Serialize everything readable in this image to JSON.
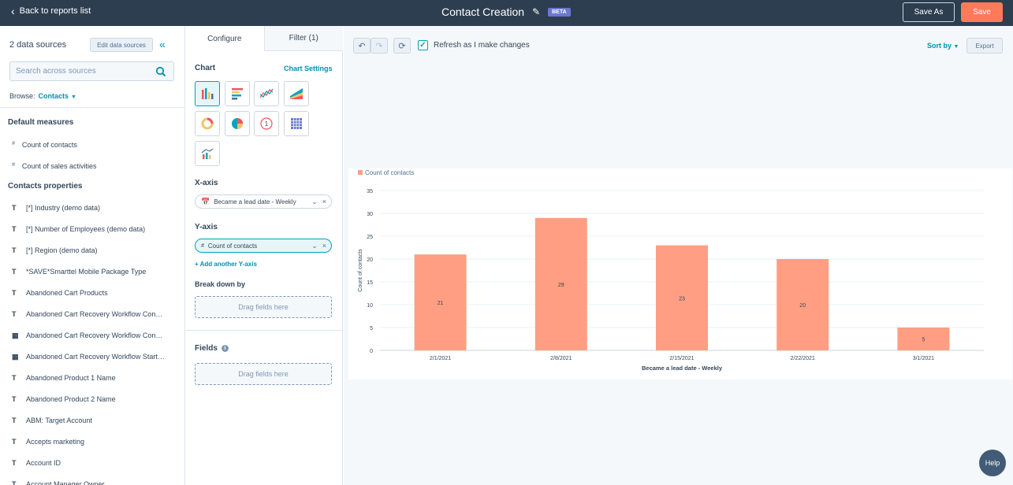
{
  "topbar": {
    "back_label": "Back to reports list",
    "title": "Contact Creation",
    "badge": "BETA",
    "save_as_label": "Save As",
    "save_label": "Save"
  },
  "sources": {
    "title": "2 data sources",
    "edit_label": "Edit data sources",
    "search_placeholder": "Search across sources",
    "browse_label": "Browse:",
    "browse_value": "Contacts"
  },
  "default_measures": {
    "title": "Default measures",
    "items": [
      {
        "type": "#",
        "label": "Count of contacts"
      },
      {
        "type": "#",
        "label": "Count of sales activities"
      }
    ]
  },
  "contact_properties": {
    "title": "Contacts properties",
    "items": [
      {
        "type": "T",
        "label": "[*] Industry (demo data)"
      },
      {
        "type": "T",
        "label": "[*] Number of Employees (demo data)"
      },
      {
        "type": "T",
        "label": "[*] Region (demo data)"
      },
      {
        "type": "T",
        "label": "*SAVE*Smarttel Mobile Package Type"
      },
      {
        "type": "T",
        "label": "Abandoned Cart Products"
      },
      {
        "type": "T",
        "label": "Abandoned Cart Recovery Workflow Con…"
      },
      {
        "type": "cal",
        "label": "Abandoned Cart Recovery Workflow Con…"
      },
      {
        "type": "cal",
        "label": "Abandoned Cart Recovery Workflow Start…"
      },
      {
        "type": "T",
        "label": "Abandoned Product 1 Name"
      },
      {
        "type": "T",
        "label": "Abandoned Product 2 Name"
      },
      {
        "type": "T",
        "label": "ABM: Target Account"
      },
      {
        "type": "T",
        "label": "Accepts marketing"
      },
      {
        "type": "T",
        "label": "Account ID"
      },
      {
        "type": "T",
        "label": "Account Manager Owner"
      }
    ]
  },
  "config": {
    "tab_configure": "Configure",
    "tab_filter": "Filter (1)",
    "chart_label": "Chart",
    "chart_settings": "Chart Settings",
    "xaxis_label": "X-axis",
    "xaxis_value": "Became a lead date - Weekly",
    "yaxis_label": "Y-axis",
    "yaxis_value": "Count of contacts",
    "add_y": "+ Add another Y-axis",
    "breakdown_label": "Break down by",
    "drag_fields": "Drag fields here",
    "fields_label": "Fields"
  },
  "toolbar": {
    "refresh_label": "Refresh as I make changes",
    "sort_by": "Sort by",
    "export": "Export"
  },
  "help_label": "Help",
  "colors": {
    "bar": "#ff9e82",
    "accent": "#0091ae",
    "save": "#ff7a59",
    "topbar": "#2d3e50"
  },
  "chart_data": {
    "type": "bar",
    "categories": [
      "2/1/2021",
      "2/8/2021",
      "2/15/2021",
      "2/22/2021",
      "3/1/2021"
    ],
    "series": [
      {
        "name": "Count of contacts",
        "values": [
          21,
          29,
          23,
          20,
          5
        ]
      }
    ],
    "xlabel": "Became a lead date - Weekly",
    "ylabel": "Count of contacts",
    "ylim": [
      0,
      35
    ],
    "yticks": [
      0,
      5,
      10,
      15,
      20,
      25,
      30,
      35
    ],
    "grid": true,
    "legend": "top-left"
  }
}
